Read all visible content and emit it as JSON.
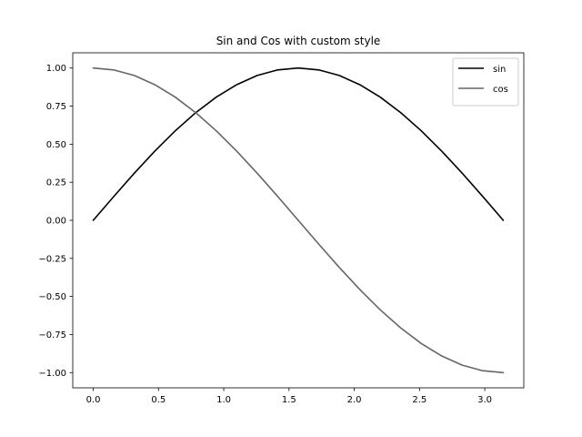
{
  "chart_data": {
    "type": "line",
    "title": "Sin and Cos with custom style",
    "xlabel": "",
    "ylabel": "",
    "xlim": [
      -0.157,
      3.299
    ],
    "ylim": [
      -1.1,
      1.1
    ],
    "x_ticks": [
      0.0,
      0.5,
      1.0,
      1.5,
      2.0,
      2.5,
      3.0
    ],
    "x_tick_labels": [
      "0.0",
      "0.5",
      "1.0",
      "1.5",
      "2.0",
      "2.5",
      "3.0"
    ],
    "y_ticks": [
      1.0,
      0.75,
      0.5,
      0.25,
      0.0,
      -0.25,
      -0.5,
      -0.75,
      -1.0
    ],
    "y_tick_labels": [
      "1.00",
      "0.75",
      "0.50",
      "0.25",
      "0.00",
      "−0.25",
      "−0.50",
      "−0.75",
      "−1.00"
    ],
    "grid": false,
    "legend_position": "top-right",
    "x": [
      0.0,
      0.1571,
      0.3142,
      0.4712,
      0.6283,
      0.7854,
      0.9425,
      1.0996,
      1.2566,
      1.4137,
      1.5708,
      1.7279,
      1.885,
      2.042,
      2.1991,
      2.3562,
      2.5133,
      2.6704,
      2.8274,
      2.9845,
      3.1416
    ],
    "series": [
      {
        "name": "sin",
        "color": "#000000",
        "values": [
          0.0,
          0.1564,
          0.309,
          0.454,
          0.5878,
          0.7071,
          0.809,
          0.891,
          0.9511,
          0.9877,
          1.0,
          0.9877,
          0.9511,
          0.891,
          0.809,
          0.7071,
          0.5878,
          0.454,
          0.309,
          0.1564,
          0.0
        ]
      },
      {
        "name": "cos",
        "color": "#666666",
        "values": [
          1.0,
          0.9877,
          0.9511,
          0.891,
          0.809,
          0.7071,
          0.5878,
          0.454,
          0.309,
          0.1564,
          0.0,
          -0.1564,
          -0.309,
          -0.454,
          -0.5878,
          -0.7071,
          -0.809,
          -0.891,
          -0.9511,
          -0.9877,
          -1.0
        ]
      }
    ]
  }
}
